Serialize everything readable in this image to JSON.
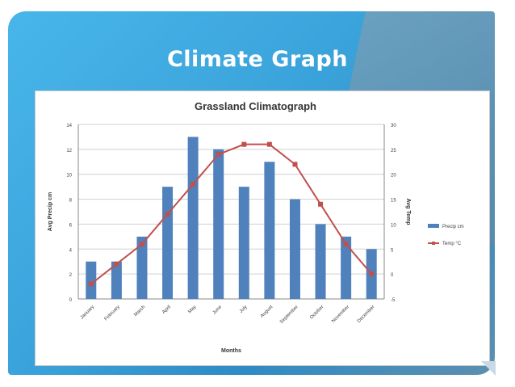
{
  "slide": {
    "title": "Climate Graph"
  },
  "colors": {
    "bar": "#4f81bd",
    "line": "#c0504d",
    "grid": "#d0d0d0",
    "axis_text": "#404040"
  },
  "chart_data": {
    "type": "bar",
    "title": "Grassland Climatograph",
    "xlabel": "Months",
    "ylabel": "Avg Precip cm",
    "y2label": "Avg Temp",
    "categories": [
      "January",
      "February",
      "March",
      "April",
      "May",
      "June",
      "July",
      "August",
      "September",
      "October",
      "November",
      "December"
    ],
    "ylim": [
      0,
      14
    ],
    "yticks": [
      "0",
      "2",
      "4",
      "6",
      "8",
      "10",
      "12",
      "14"
    ],
    "y2lim": [
      -5,
      30
    ],
    "y2ticks": [
      "-5",
      "0",
      "5",
      "10",
      "15",
      "20",
      "25",
      "30"
    ],
    "grid": true,
    "legend_position": "right",
    "series": [
      {
        "name": "Precip cm",
        "type": "bar",
        "axis": "left",
        "values": [
          3,
          3,
          5,
          9,
          13,
          12,
          9,
          11,
          8,
          6,
          5,
          4
        ]
      },
      {
        "name": "Temp °C",
        "type": "line",
        "axis": "right",
        "values": [
          -2,
          2,
          6,
          12,
          18,
          24,
          26,
          26,
          22,
          14,
          6,
          0
        ]
      }
    ]
  }
}
